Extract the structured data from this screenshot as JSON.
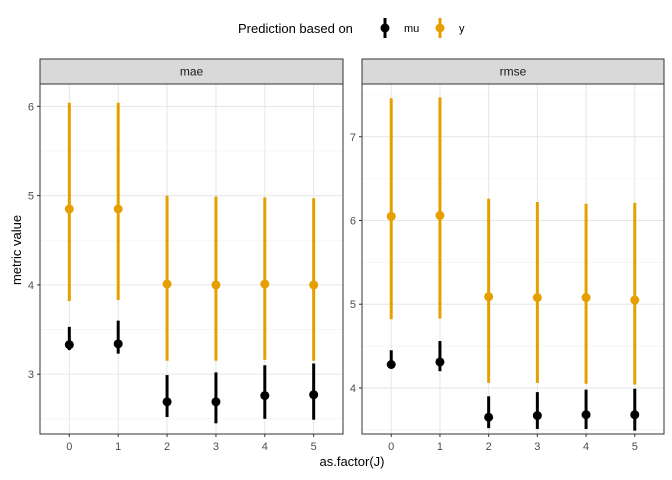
{
  "chart_data": {
    "type": "pointrange",
    "xlabel": "as.factor(J)",
    "ylabel": "metric value",
    "categories": [
      "0",
      "1",
      "2",
      "3",
      "4",
      "5"
    ],
    "legend": {
      "title": "Prediction based on",
      "position": "top",
      "entries": [
        {
          "name": "mu",
          "color": "#000000"
        },
        {
          "name": "y",
          "color": "#E69F00"
        }
      ]
    },
    "grid": true,
    "panels": [
      {
        "title": "mae",
        "ylim": [
          2.33,
          6.25
        ],
        "yticks": [
          "3",
          "4",
          "5",
          "6"
        ],
        "series": [
          {
            "name": "mu",
            "color": "#000000",
            "mean": [
              3.33,
              3.34,
              2.69,
              2.69,
              2.76,
              2.77
            ],
            "lower": [
              3.27,
              3.23,
              2.52,
              2.45,
              2.5,
              2.49
            ],
            "upper": [
              3.53,
              3.6,
              2.99,
              3.02,
              3.1,
              3.12
            ]
          },
          {
            "name": "y",
            "color": "#E69F00",
            "mean": [
              4.85,
              4.85,
              4.01,
              4.0,
              4.01,
              4.0
            ],
            "lower": [
              3.82,
              3.83,
              3.15,
              3.15,
              3.16,
              3.15
            ],
            "upper": [
              6.04,
              6.04,
              5.0,
              4.99,
              4.98,
              4.97
            ]
          }
        ]
      },
      {
        "title": "rmse",
        "ylim": [
          3.45,
          7.63
        ],
        "yticks": [
          "4",
          "5",
          "6",
          "7"
        ],
        "series": [
          {
            "name": "mu",
            "color": "#000000",
            "mean": [
              4.28,
              4.31,
              3.65,
              3.67,
              3.68,
              3.68
            ],
            "lower": [
              4.23,
              4.2,
              3.52,
              3.51,
              3.51,
              3.49
            ],
            "upper": [
              4.45,
              4.56,
              3.9,
              3.95,
              3.98,
              3.99
            ]
          },
          {
            "name": "y",
            "color": "#E69F00",
            "mean": [
              6.05,
              6.06,
              5.09,
              5.08,
              5.08,
              5.05
            ],
            "lower": [
              4.82,
              4.83,
              4.06,
              4.06,
              4.05,
              4.04
            ],
            "upper": [
              7.46,
              7.47,
              6.26,
              6.22,
              6.2,
              6.21
            ]
          }
        ]
      }
    ]
  }
}
